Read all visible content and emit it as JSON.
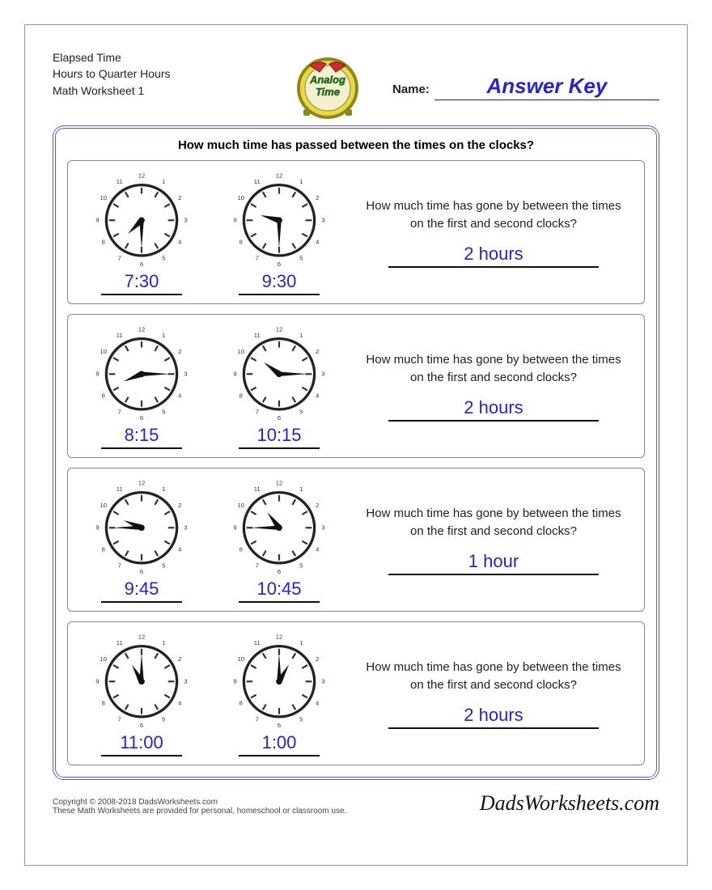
{
  "meta": {
    "line1": "Elapsed Time",
    "line2": "Hours to Quarter Hours",
    "line3": "Math Worksheet 1"
  },
  "badge": {
    "text_top": "Analog",
    "text_bottom": "Time",
    "ring_color": "#8a8a1a",
    "ring_inner": "#e8d84a",
    "face_color": "#f4f0d0",
    "bell_color": "#d32b2b",
    "text_color": "#1a7a1a"
  },
  "name_label": "Name:",
  "name_value": "Answer Key",
  "instruction": "How much time has passed between the times on the clocks?",
  "question_text": "How much time has gone by between the times on the first and second clocks?",
  "colors": {
    "answer_blue": "#2424d6",
    "box_border": "#5a5ad6"
  },
  "clock_style": {
    "face": "#ffffff",
    "rim": "#222222",
    "tick": "#333333",
    "hand": "#111111",
    "number_radius": 50
  },
  "problems": [
    {
      "t1": "7:30",
      "h1": 7,
      "m1": 30,
      "t2": "9:30",
      "h2": 9,
      "m2": 30,
      "answer": "2 hours"
    },
    {
      "t1": "8:15",
      "h1": 8,
      "m1": 15,
      "t2": "10:15",
      "h2": 10,
      "m2": 15,
      "answer": "2 hours"
    },
    {
      "t1": "9:45",
      "h1": 9,
      "m1": 45,
      "t2": "10:45",
      "h2": 10,
      "m2": 45,
      "answer": "1 hour"
    },
    {
      "t1": "11:00",
      "h1": 11,
      "m1": 0,
      "t2": "1:00",
      "h2": 1,
      "m2": 0,
      "answer": "2 hours"
    }
  ],
  "footer": {
    "copyright": "Copyright © 2008-2018 DadsWorksheets.com",
    "note": "These Math Worksheets are provided for personal, homeschool or classroom use.",
    "site": "DadsWorksheets.com"
  }
}
